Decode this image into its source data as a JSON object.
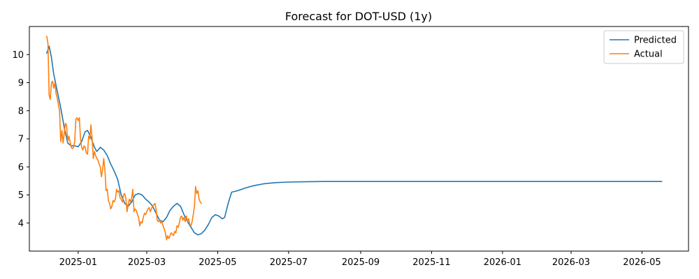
{
  "chart_data": {
    "type": "line",
    "title": "Forecast for DOT-USD (1y)",
    "xlabel": "",
    "ylabel": "",
    "xlim": [
      "2024-11-20",
      "2026-06-10"
    ],
    "ylim": [
      3.0,
      11.0
    ],
    "x_ticks": [
      "2025-01",
      "2025-03",
      "2025-05",
      "2025-07",
      "2025-09",
      "2025-11",
      "2026-01",
      "2026-03",
      "2026-05"
    ],
    "y_ticks": [
      4,
      5,
      6,
      7,
      8,
      9,
      10
    ],
    "grid": false,
    "legend": "top-right",
    "series": [
      {
        "name": "Predicted",
        "color": "#1f77b4",
        "points": [
          [
            "2024-12-05",
            10.05
          ],
          [
            "2024-12-07",
            10.3
          ],
          [
            "2024-12-09",
            9.9
          ],
          [
            "2024-12-11",
            9.3
          ],
          [
            "2024-12-14",
            8.7
          ],
          [
            "2024-12-17",
            8.1
          ],
          [
            "2024-12-20",
            7.4
          ],
          [
            "2024-12-23",
            6.85
          ],
          [
            "2024-12-26",
            6.75
          ],
          [
            "2024-12-29",
            6.75
          ],
          [
            "2025-01-01",
            6.72
          ],
          [
            "2025-01-04",
            6.9
          ],
          [
            "2025-01-07",
            7.25
          ],
          [
            "2025-01-09",
            7.3
          ],
          [
            "2025-01-12",
            7.05
          ],
          [
            "2025-01-15",
            6.7
          ],
          [
            "2025-01-17",
            6.55
          ],
          [
            "2025-01-20",
            6.7
          ],
          [
            "2025-01-23",
            6.6
          ],
          [
            "2025-01-26",
            6.4
          ],
          [
            "2025-01-29",
            6.1
          ],
          [
            "2025-02-01",
            5.85
          ],
          [
            "2025-02-04",
            5.55
          ],
          [
            "2025-02-07",
            5.0
          ],
          [
            "2025-02-10",
            4.7
          ],
          [
            "2025-02-13",
            4.6
          ],
          [
            "2025-02-16",
            4.75
          ],
          [
            "2025-02-19",
            5.0
          ],
          [
            "2025-02-22",
            5.05
          ],
          [
            "2025-02-25",
            5.0
          ],
          [
            "2025-02-28",
            4.85
          ],
          [
            "2025-03-03",
            4.75
          ],
          [
            "2025-03-06",
            4.6
          ],
          [
            "2025-03-09",
            4.35
          ],
          [
            "2025-03-12",
            4.1
          ],
          [
            "2025-03-15",
            4.05
          ],
          [
            "2025-03-18",
            4.2
          ],
          [
            "2025-03-21",
            4.45
          ],
          [
            "2025-03-24",
            4.6
          ],
          [
            "2025-03-27",
            4.7
          ],
          [
            "2025-03-30",
            4.6
          ],
          [
            "2025-04-02",
            4.3
          ],
          [
            "2025-04-05",
            4.05
          ],
          [
            "2025-04-08",
            3.85
          ],
          [
            "2025-04-11",
            3.65
          ],
          [
            "2025-04-14",
            3.58
          ],
          [
            "2025-04-17",
            3.62
          ],
          [
            "2025-04-20",
            3.75
          ],
          [
            "2025-04-23",
            3.95
          ],
          [
            "2025-04-26",
            4.2
          ],
          [
            "2025-04-29",
            4.3
          ],
          [
            "2025-05-02",
            4.25
          ],
          [
            "2025-05-05",
            4.15
          ],
          [
            "2025-05-07",
            4.2
          ],
          [
            "2025-05-10",
            4.7
          ],
          [
            "2025-05-13",
            5.1
          ],
          [
            "2025-05-18",
            5.15
          ],
          [
            "2025-05-25",
            5.25
          ],
          [
            "2025-06-01",
            5.33
          ],
          [
            "2025-06-10",
            5.4
          ],
          [
            "2025-06-20",
            5.44
          ],
          [
            "2025-07-01",
            5.46
          ],
          [
            "2025-07-15",
            5.47
          ],
          [
            "2025-08-01",
            5.48
          ],
          [
            "2025-09-01",
            5.48
          ],
          [
            "2025-11-01",
            5.48
          ],
          [
            "2026-01-01",
            5.48
          ],
          [
            "2026-03-01",
            5.48
          ],
          [
            "2026-05-18",
            5.48
          ]
        ]
      },
      {
        "name": "Actual",
        "color": "#ff7f0e",
        "points": [
          [
            "2024-12-05",
            10.65
          ],
          [
            "2024-12-06",
            10.4
          ],
          [
            "2024-12-07",
            8.55
          ],
          [
            "2024-12-08",
            8.4
          ],
          [
            "2024-12-09",
            9.0
          ],
          [
            "2024-12-10",
            9.05
          ],
          [
            "2024-12-11",
            8.8
          ],
          [
            "2024-12-12",
            9.0
          ],
          [
            "2024-12-13",
            8.6
          ],
          [
            "2024-12-14",
            8.45
          ],
          [
            "2024-12-15",
            8.2
          ],
          [
            "2024-12-16",
            8.0
          ],
          [
            "2024-12-17",
            6.9
          ],
          [
            "2024-12-18",
            7.3
          ],
          [
            "2024-12-19",
            6.85
          ],
          [
            "2024-12-20",
            7.2
          ],
          [
            "2024-12-21",
            7.55
          ],
          [
            "2024-12-22",
            7.5
          ],
          [
            "2024-12-23",
            6.9
          ],
          [
            "2024-12-24",
            7.1
          ],
          [
            "2024-12-25",
            6.9
          ],
          [
            "2024-12-26",
            6.7
          ],
          [
            "2024-12-27",
            6.65
          ],
          [
            "2024-12-28",
            6.7
          ],
          [
            "2024-12-29",
            6.9
          ],
          [
            "2024-12-30",
            7.7
          ],
          [
            "2024-12-31",
            7.75
          ],
          [
            "2025-01-01",
            7.65
          ],
          [
            "2025-01-02",
            7.75
          ],
          [
            "2025-01-03",
            7.0
          ],
          [
            "2025-01-04",
            6.7
          ],
          [
            "2025-01-05",
            6.6
          ],
          [
            "2025-01-06",
            6.75
          ],
          [
            "2025-01-07",
            6.7
          ],
          [
            "2025-01-08",
            6.5
          ],
          [
            "2025-01-09",
            6.45
          ],
          [
            "2025-01-10",
            7.1
          ],
          [
            "2025-01-11",
            7.0
          ],
          [
            "2025-01-12",
            7.5
          ],
          [
            "2025-01-13",
            7.0
          ],
          [
            "2025-01-14",
            6.3
          ],
          [
            "2025-01-15",
            6.55
          ],
          [
            "2025-01-16",
            6.4
          ],
          [
            "2025-01-17",
            6.3
          ],
          [
            "2025-01-18",
            6.25
          ],
          [
            "2025-01-19",
            6.1
          ],
          [
            "2025-01-20",
            6.0
          ],
          [
            "2025-01-21",
            5.65
          ],
          [
            "2025-01-22",
            5.9
          ],
          [
            "2025-01-23",
            6.3
          ],
          [
            "2025-01-24",
            5.9
          ],
          [
            "2025-01-25",
            5.15
          ],
          [
            "2025-01-26",
            5.2
          ],
          [
            "2025-01-27",
            4.8
          ],
          [
            "2025-01-28",
            4.7
          ],
          [
            "2025-01-29",
            4.5
          ],
          [
            "2025-01-30",
            4.6
          ],
          [
            "2025-01-31",
            4.8
          ],
          [
            "2025-02-01",
            4.75
          ],
          [
            "2025-02-02",
            4.85
          ],
          [
            "2025-02-03",
            5.2
          ],
          [
            "2025-02-04",
            5.1
          ],
          [
            "2025-02-05",
            5.15
          ],
          [
            "2025-02-06",
            4.9
          ],
          [
            "2025-02-07",
            4.85
          ],
          [
            "2025-02-08",
            4.75
          ],
          [
            "2025-02-09",
            5.0
          ],
          [
            "2025-02-10",
            5.05
          ],
          [
            "2025-02-11",
            4.9
          ],
          [
            "2025-02-12",
            4.4
          ],
          [
            "2025-02-13",
            4.65
          ],
          [
            "2025-02-14",
            4.85
          ],
          [
            "2025-02-15",
            4.75
          ],
          [
            "2025-02-16",
            4.9
          ],
          [
            "2025-02-17",
            5.2
          ],
          [
            "2025-02-18",
            4.4
          ],
          [
            "2025-02-19",
            4.5
          ],
          [
            "2025-02-20",
            4.45
          ],
          [
            "2025-02-21",
            4.3
          ],
          [
            "2025-02-22",
            4.2
          ],
          [
            "2025-02-23",
            3.9
          ],
          [
            "2025-02-24",
            4.05
          ],
          [
            "2025-02-25",
            4.0
          ],
          [
            "2025-02-26",
            4.2
          ],
          [
            "2025-02-27",
            4.35
          ],
          [
            "2025-02-28",
            4.3
          ],
          [
            "2025-03-01",
            4.4
          ],
          [
            "2025-03-02",
            4.5
          ],
          [
            "2025-03-03",
            4.55
          ],
          [
            "2025-03-04",
            4.4
          ],
          [
            "2025-03-05",
            4.5
          ],
          [
            "2025-03-06",
            4.6
          ],
          [
            "2025-03-07",
            4.65
          ],
          [
            "2025-03-08",
            4.7
          ],
          [
            "2025-03-09",
            4.5
          ],
          [
            "2025-03-10",
            4.1
          ],
          [
            "2025-03-11",
            4.05
          ],
          [
            "2025-03-12",
            4.1
          ],
          [
            "2025-03-13",
            4.0
          ],
          [
            "2025-03-14",
            4.05
          ],
          [
            "2025-03-15",
            3.9
          ],
          [
            "2025-03-16",
            3.8
          ],
          [
            "2025-03-17",
            3.65
          ],
          [
            "2025-03-18",
            3.4
          ],
          [
            "2025-03-19",
            3.55
          ],
          [
            "2025-03-20",
            3.45
          ],
          [
            "2025-03-21",
            3.55
          ],
          [
            "2025-03-22",
            3.65
          ],
          [
            "2025-03-23",
            3.6
          ],
          [
            "2025-03-24",
            3.55
          ],
          [
            "2025-03-25",
            3.7
          ],
          [
            "2025-03-26",
            3.65
          ],
          [
            "2025-03-27",
            3.9
          ],
          [
            "2025-03-28",
            3.85
          ],
          [
            "2025-03-29",
            4.0
          ],
          [
            "2025-03-30",
            4.2
          ],
          [
            "2025-03-31",
            4.25
          ],
          [
            "2025-04-01",
            4.1
          ],
          [
            "2025-04-02",
            4.2
          ],
          [
            "2025-04-03",
            4.05
          ],
          [
            "2025-04-04",
            4.25
          ],
          [
            "2025-04-05",
            4.05
          ],
          [
            "2025-04-06",
            4.15
          ],
          [
            "2025-04-07",
            3.95
          ],
          [
            "2025-04-08",
            3.9
          ],
          [
            "2025-04-09",
            4.05
          ],
          [
            "2025-04-10",
            4.3
          ],
          [
            "2025-04-11",
            4.6
          ],
          [
            "2025-04-12",
            5.3
          ],
          [
            "2025-04-13",
            5.05
          ],
          [
            "2025-04-14",
            5.15
          ],
          [
            "2025-04-15",
            4.85
          ],
          [
            "2025-04-16",
            4.75
          ],
          [
            "2025-04-17",
            4.7
          ]
        ]
      }
    ]
  }
}
